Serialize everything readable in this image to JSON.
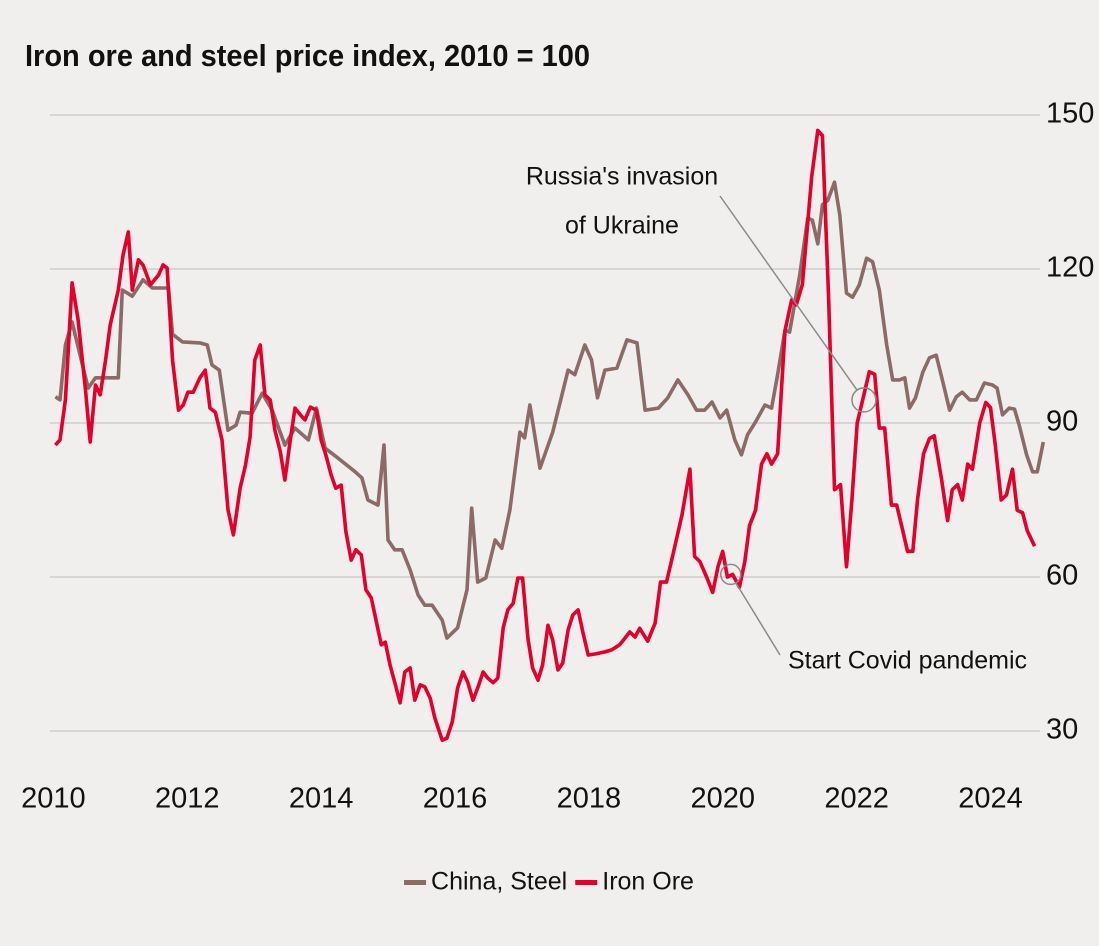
{
  "chart_data": {
    "type": "line",
    "title": "Iron ore and steel price index, 2010 = 100",
    "xlim": [
      2009.95,
      2024.8
    ],
    "xticks": [
      2010,
      2012,
      2014,
      2016,
      2018,
      2020,
      2022,
      2024
    ],
    "ylim": [
      30,
      150
    ],
    "yticks": [
      30,
      60,
      90,
      120,
      150
    ],
    "grid": true,
    "legend": "bottom",
    "series": [
      {
        "name": "China, Steel",
        "color": "#8c6a68",
        "x": [
          2010.03,
          2010.1,
          2010.18,
          2010.28,
          2010.4,
          2010.52,
          2010.63,
          2010.97,
          2011.03,
          2011.18,
          2011.34,
          2011.48,
          2011.72,
          2011.78,
          2011.93,
          2012.19,
          2012.3,
          2012.37,
          2012.48,
          2012.61,
          2012.73,
          2012.79,
          2012.97,
          2013.12,
          2013.27,
          2013.46,
          2013.61,
          2013.81,
          2013.93,
          2014.06,
          2014.25,
          2014.51,
          2014.61,
          2014.7,
          2014.85,
          2014.94,
          2015.0,
          2015.1,
          2015.21,
          2015.33,
          2015.45,
          2015.55,
          2015.66,
          2015.81,
          2015.88,
          2016.04,
          2016.18,
          2016.25,
          2016.34,
          2016.46,
          2016.6,
          2016.7,
          2016.82,
          2016.97,
          2017.04,
          2017.12,
          2017.27,
          2017.46,
          2017.69,
          2017.79,
          2017.94,
          2018.04,
          2018.13,
          2018.24,
          2018.42,
          2018.57,
          2018.72,
          2018.84,
          2019.04,
          2019.18,
          2019.33,
          2019.48,
          2019.61,
          2019.73,
          2019.84,
          2019.96,
          2020.06,
          2020.18,
          2020.28,
          2020.37,
          2020.49,
          2020.63,
          2020.73,
          2020.82,
          2020.93,
          2021.0,
          2021.15,
          2021.27,
          2021.34,
          2021.42,
          2021.49,
          2021.57,
          2021.67,
          2021.75,
          2021.85,
          2021.94,
          2022.04,
          2022.15,
          2022.24,
          2022.34,
          2022.45,
          2022.54,
          2022.64,
          2022.72,
          2022.79,
          2022.88,
          2022.99,
          2023.09,
          2023.19,
          2023.3,
          2023.39,
          2023.49,
          2023.58,
          2023.69,
          2023.79,
          2023.91,
          2024.03,
          2024.1,
          2024.18,
          2024.28,
          2024.36,
          2024.43,
          2024.54,
          2024.63,
          2024.7,
          2024.79
        ],
        "values": [
          95.1,
          94.5,
          105.2,
          109.7,
          103.2,
          96.8,
          98.8,
          98.8,
          115.9,
          114.7,
          117.9,
          116.3,
          116.3,
          107.3,
          105.8,
          105.6,
          105.2,
          101.3,
          100.3,
          88.6,
          89.6,
          92.1,
          91.9,
          95.8,
          92.5,
          85.7,
          89.0,
          86.7,
          92.9,
          85.1,
          83.2,
          80.5,
          79.3,
          75.0,
          74.0,
          85.7,
          67.2,
          65.3,
          65.3,
          61.4,
          56.5,
          54.5,
          54.5,
          51.6,
          48.1,
          50.1,
          57.5,
          73.4,
          59.0,
          59.8,
          67.2,
          65.6,
          73.1,
          88.2,
          87.1,
          93.5,
          81.2,
          88.2,
          100.3,
          99.4,
          105.2,
          102.3,
          94.9,
          100.3,
          100.7,
          106.2,
          105.6,
          92.5,
          92.9,
          94.9,
          98.4,
          95.5,
          92.5,
          92.5,
          94.1,
          91.0,
          92.5,
          86.7,
          83.8,
          87.7,
          90.2,
          93.5,
          92.9,
          99.4,
          108.1,
          107.7,
          118.8,
          129.9,
          129.5,
          124.9,
          132.5,
          133.4,
          136.9,
          130.5,
          115.3,
          114.5,
          116.9,
          122.1,
          121.4,
          115.9,
          105.2,
          98.4,
          98.4,
          98.8,
          92.9,
          94.9,
          99.9,
          102.7,
          103.2,
          97.4,
          92.5,
          95.1,
          96.0,
          94.5,
          94.5,
          97.8,
          97.4,
          96.8,
          91.6,
          92.9,
          92.7,
          89.6,
          83.8,
          80.5,
          80.5,
          86.3
        ]
      },
      {
        "name": "Iron Ore",
        "color": "#e3002b",
        "x": [
          2010.03,
          2010.1,
          2010.18,
          2010.28,
          2010.37,
          2010.48,
          2010.55,
          2010.63,
          2010.7,
          2010.78,
          2010.85,
          2010.97,
          2011.04,
          2011.12,
          2011.18,
          2011.27,
          2011.34,
          2011.45,
          2011.57,
          2011.64,
          2011.7,
          2011.78,
          2011.87,
          2011.94,
          2012.01,
          2012.09,
          2012.19,
          2012.27,
          2012.34,
          2012.42,
          2012.52,
          2012.61,
          2012.69,
          2012.79,
          2012.87,
          2012.94,
          2013.01,
          2013.09,
          2013.16,
          2013.24,
          2013.31,
          2013.39,
          2013.46,
          2013.54,
          2013.61,
          2013.69,
          2013.76,
          2013.84,
          2013.93,
          2014.0,
          2014.07,
          2014.15,
          2014.22,
          2014.3,
          2014.37,
          2014.45,
          2014.52,
          2014.6,
          2014.67,
          2014.75,
          2014.82,
          2014.9,
          2014.96,
          2015.03,
          2015.1,
          2015.18,
          2015.25,
          2015.33,
          2015.4,
          2015.48,
          2015.55,
          2015.63,
          2015.7,
          2015.81,
          2015.88,
          2015.96,
          2016.04,
          2016.12,
          2016.19,
          2016.27,
          2016.34,
          2016.42,
          2016.49,
          2016.57,
          2016.64,
          2016.72,
          2016.79,
          2016.87,
          2016.94,
          2017.01,
          2017.09,
          2017.16,
          2017.24,
          2017.31,
          2017.39,
          2017.46,
          2017.54,
          2017.61,
          2017.69,
          2017.76,
          2017.84,
          2017.91,
          2017.99,
          2018.09,
          2018.24,
          2018.34,
          2018.46,
          2018.54,
          2018.61,
          2018.69,
          2018.76,
          2018.88,
          2018.99,
          2019.07,
          2019.16,
          2019.25,
          2019.39,
          2019.51,
          2019.58,
          2019.66,
          2019.76,
          2019.85,
          2019.93,
          2020.0,
          2020.07,
          2020.15,
          2020.25,
          2020.33,
          2020.4,
          2020.49,
          2020.58,
          2020.66,
          2020.73,
          2020.82,
          2020.93,
          2021.03,
          2021.1,
          2021.19,
          2021.33,
          2021.42,
          2021.49,
          2021.58,
          2021.67,
          2021.76,
          2021.85,
          2021.93,
          2022.01,
          2022.1,
          2022.19,
          2022.27,
          2022.34,
          2022.42,
          2022.52,
          2022.6,
          2022.69,
          2022.76,
          2022.84,
          2022.91,
          2023.0,
          2023.09,
          2023.16,
          2023.27,
          2023.36,
          2023.43,
          2023.51,
          2023.58,
          2023.66,
          2023.73,
          2023.84,
          2023.93,
          2024.0,
          2024.07,
          2024.16,
          2024.24,
          2024.33,
          2024.4,
          2024.48,
          2024.55,
          2024.66
        ],
        "values": [
          85.7,
          86.7,
          94.5,
          117.3,
          110.1,
          96.4,
          86.3,
          97.4,
          95.5,
          102.3,
          109.1,
          115.9,
          122.7,
          127.2,
          115.9,
          121.8,
          120.8,
          116.9,
          118.8,
          120.8,
          120.2,
          102.3,
          92.5,
          93.5,
          96.0,
          96.0,
          98.8,
          100.3,
          92.9,
          92.1,
          86.7,
          73.1,
          68.2,
          77.3,
          81.8,
          87.3,
          102.3,
          105.2,
          95.5,
          94.5,
          88.6,
          84.4,
          78.9,
          86.7,
          92.9,
          91.6,
          90.6,
          93.1,
          92.5,
          86.7,
          83.8,
          79.9,
          77.3,
          77.9,
          68.8,
          63.3,
          65.3,
          64.3,
          57.5,
          55.9,
          51.6,
          46.8,
          47.3,
          42.9,
          39.5,
          35.5,
          41.5,
          42.3,
          36.0,
          39.0,
          38.6,
          36.4,
          32.5,
          28.2,
          28.6,
          31.8,
          38.4,
          41.5,
          39.5,
          36.0,
          38.4,
          41.5,
          40.3,
          39.4,
          40.3,
          50.1,
          53.6,
          54.9,
          59.8,
          59.8,
          48.1,
          42.3,
          39.9,
          42.9,
          50.6,
          47.7,
          41.9,
          43.2,
          49.7,
          52.6,
          53.6,
          49.3,
          44.8,
          45.0,
          45.4,
          45.8,
          46.8,
          48.1,
          49.3,
          48.3,
          50,
          47.5,
          51,
          59,
          59,
          64,
          72,
          81,
          64,
          63,
          60,
          57,
          62,
          65,
          60,
          60.5,
          58,
          63,
          70,
          73,
          82,
          84,
          82,
          84,
          108,
          114,
          113,
          117,
          138,
          147,
          146,
          115,
          77,
          78,
          62,
          75,
          90,
          95,
          100,
          99.5,
          89,
          89,
          74,
          74,
          69,
          65,
          65,
          75,
          84,
          87,
          87.5,
          79,
          71,
          77,
          78,
          75,
          82,
          81,
          90,
          94,
          93,
          86,
          75,
          76,
          81,
          73,
          72.5,
          69,
          66
        ]
      }
    ],
    "annotations": [
      {
        "text": [
          "Russia's invasion",
          "of Ukraine"
        ],
        "x": 2022.11,
        "y": 94.5
      },
      {
        "text": [
          "Start Covid pandemic"
        ],
        "x": 2020.12,
        "y": 60.5
      }
    ]
  }
}
